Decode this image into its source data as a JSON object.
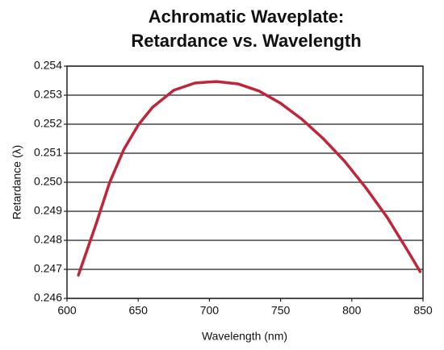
{
  "chart_data": {
    "type": "line",
    "title": [
      "Achromatic Waveplate:",
      "Retardance vs. Wavelength"
    ],
    "x_label": "Wavelength (nm)",
    "y_label": "Retardance (λ)",
    "x": [
      608,
      620,
      630,
      640,
      650,
      660,
      675,
      690,
      705,
      720,
      735,
      750,
      765,
      780,
      795,
      810,
      825,
      840,
      848
    ],
    "series": [
      {
        "color": "#c0263a",
        "values": [
          0.2468,
          0.2485,
          0.25,
          0.25114,
          0.25197,
          0.25258,
          0.25317,
          0.25342,
          0.25347,
          0.25339,
          0.25314,
          0.25272,
          0.25217,
          0.2515,
          0.25072,
          0.2498,
          0.24878,
          0.24758,
          0.24692
        ]
      }
    ],
    "xlim": [
      600,
      850
    ],
    "xticks": [
      600,
      650,
      700,
      750,
      800,
      850
    ],
    "ylim": [
      0.246,
      0.254
    ],
    "yticks": [
      0.246,
      0.247,
      0.248,
      0.249,
      {
        "value": 0.25,
        "label": "0.250"
      },
      0.251,
      0.252,
      0.253,
      0.254
    ],
    "grid": true
  }
}
